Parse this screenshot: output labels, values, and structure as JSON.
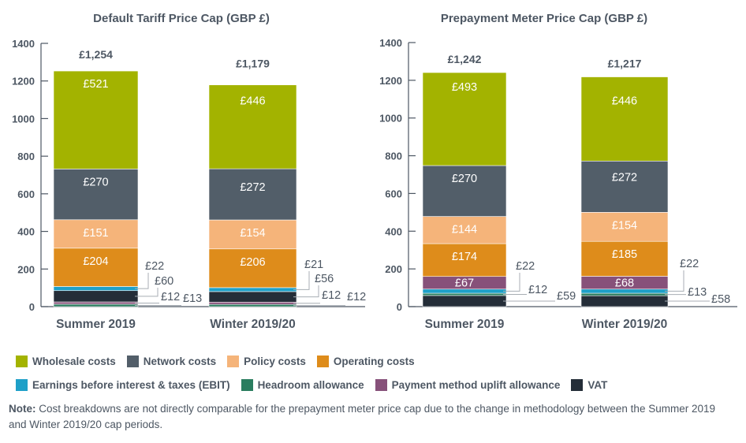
{
  "legend": [
    {
      "key": "wholesale",
      "label": "Wholesale costs",
      "color": "#a3b300"
    },
    {
      "key": "network",
      "label": "Network costs",
      "color": "#525e69"
    },
    {
      "key": "policy",
      "label": "Policy costs",
      "color": "#f5b47a"
    },
    {
      "key": "operating",
      "label": "Operating costs",
      "color": "#de8c1b"
    },
    {
      "key": "ebit",
      "label": "Earnings before interest & taxes (EBIT)",
      "color": "#1ea0c8"
    },
    {
      "key": "headroom",
      "label": "Headroom allowance",
      "color": "#2a7d5f"
    },
    {
      "key": "pmu",
      "label": "Payment method uplift allowance",
      "color": "#87517a"
    },
    {
      "key": "vat",
      "label": "VAT",
      "color": "#242d38"
    }
  ],
  "note": {
    "prefix": "Note:",
    "text": " Cost breakdowns are not directly comparable for the prepayment meter price cap due to the change in methodology between the Summer 2019 and Winter 2019/20 cap periods."
  },
  "chart_data": [
    {
      "type": "bar",
      "stacked": true,
      "title": "Default Tariff Price Cap (GBP £)",
      "xlabel": "",
      "ylabel": "",
      "ylim": [
        0,
        1400
      ],
      "yticks": [
        0,
        200,
        400,
        600,
        800,
        1000,
        1200,
        1400
      ],
      "categories": [
        "Summer 2019",
        "Winter 2019/20"
      ],
      "totals": [
        "£1,254",
        "£1,179"
      ],
      "grid": false,
      "series": [
        {
          "key": "headroom",
          "name": "Headroom allowance",
          "values": [
            13,
            12
          ],
          "labels": [
            "£13",
            "£12"
          ]
        },
        {
          "key": "pmu",
          "name": "Payment method uplift allowance",
          "values": [
            12,
            12
          ],
          "labels": [
            "£12",
            "£12"
          ]
        },
        {
          "key": "vat",
          "name": "VAT",
          "values": [
            60,
            56
          ],
          "labels": [
            "£60",
            "£56"
          ]
        },
        {
          "key": "ebit",
          "name": "Earnings before interest & taxes (EBIT)",
          "values": [
            22,
            21
          ],
          "labels": [
            "£22",
            "£21"
          ]
        },
        {
          "key": "operating",
          "name": "Operating costs",
          "values": [
            204,
            206
          ],
          "labels": [
            "£204",
            "£206"
          ]
        },
        {
          "key": "policy",
          "name": "Policy costs",
          "values": [
            151,
            154
          ],
          "labels": [
            "£151",
            "£154"
          ]
        },
        {
          "key": "network",
          "name": "Network costs",
          "values": [
            270,
            272
          ],
          "labels": [
            "£270",
            "£272"
          ]
        },
        {
          "key": "wholesale",
          "name": "Wholesale costs",
          "values": [
            521,
            446
          ],
          "labels": [
            "£521",
            "£446"
          ]
        }
      ]
    },
    {
      "type": "bar",
      "stacked": true,
      "title": "Prepayment Meter Price Cap (GBP £)",
      "xlabel": "",
      "ylabel": "",
      "ylim": [
        0,
        1400
      ],
      "yticks": [
        0,
        200,
        400,
        600,
        800,
        1000,
        1200,
        1400
      ],
      "categories": [
        "Summer 2019",
        "Winter 2019/20"
      ],
      "totals": [
        "£1,242",
        "£1,217"
      ],
      "grid": false,
      "series": [
        {
          "key": "vat",
          "name": "VAT",
          "values": [
            59,
            58
          ],
          "labels": [
            "£59",
            "£58"
          ]
        },
        {
          "key": "headroom",
          "name": "Headroom allowance",
          "values": [
            12,
            13
          ],
          "labels": [
            "£12",
            "£13"
          ]
        },
        {
          "key": "ebit",
          "name": "Earnings before interest & taxes (EBIT)",
          "values": [
            22,
            22
          ],
          "labels": [
            "£22",
            "£22"
          ]
        },
        {
          "key": "pmu",
          "name": "Payment method uplift allowance",
          "values": [
            67,
            68
          ],
          "labels": [
            "£67",
            "£68"
          ]
        },
        {
          "key": "operating",
          "name": "Operating costs",
          "values": [
            174,
            185
          ],
          "labels": [
            "£174",
            "£185"
          ]
        },
        {
          "key": "policy",
          "name": "Policy costs",
          "values": [
            144,
            154
          ],
          "labels": [
            "£144",
            "£154"
          ]
        },
        {
          "key": "network",
          "name": "Network costs",
          "values": [
            270,
            272
          ],
          "labels": [
            "£270",
            "£272"
          ]
        },
        {
          "key": "wholesale",
          "name": "Wholesale costs",
          "values": [
            493,
            446
          ],
          "labels": [
            "£493",
            "£446"
          ]
        }
      ]
    }
  ]
}
